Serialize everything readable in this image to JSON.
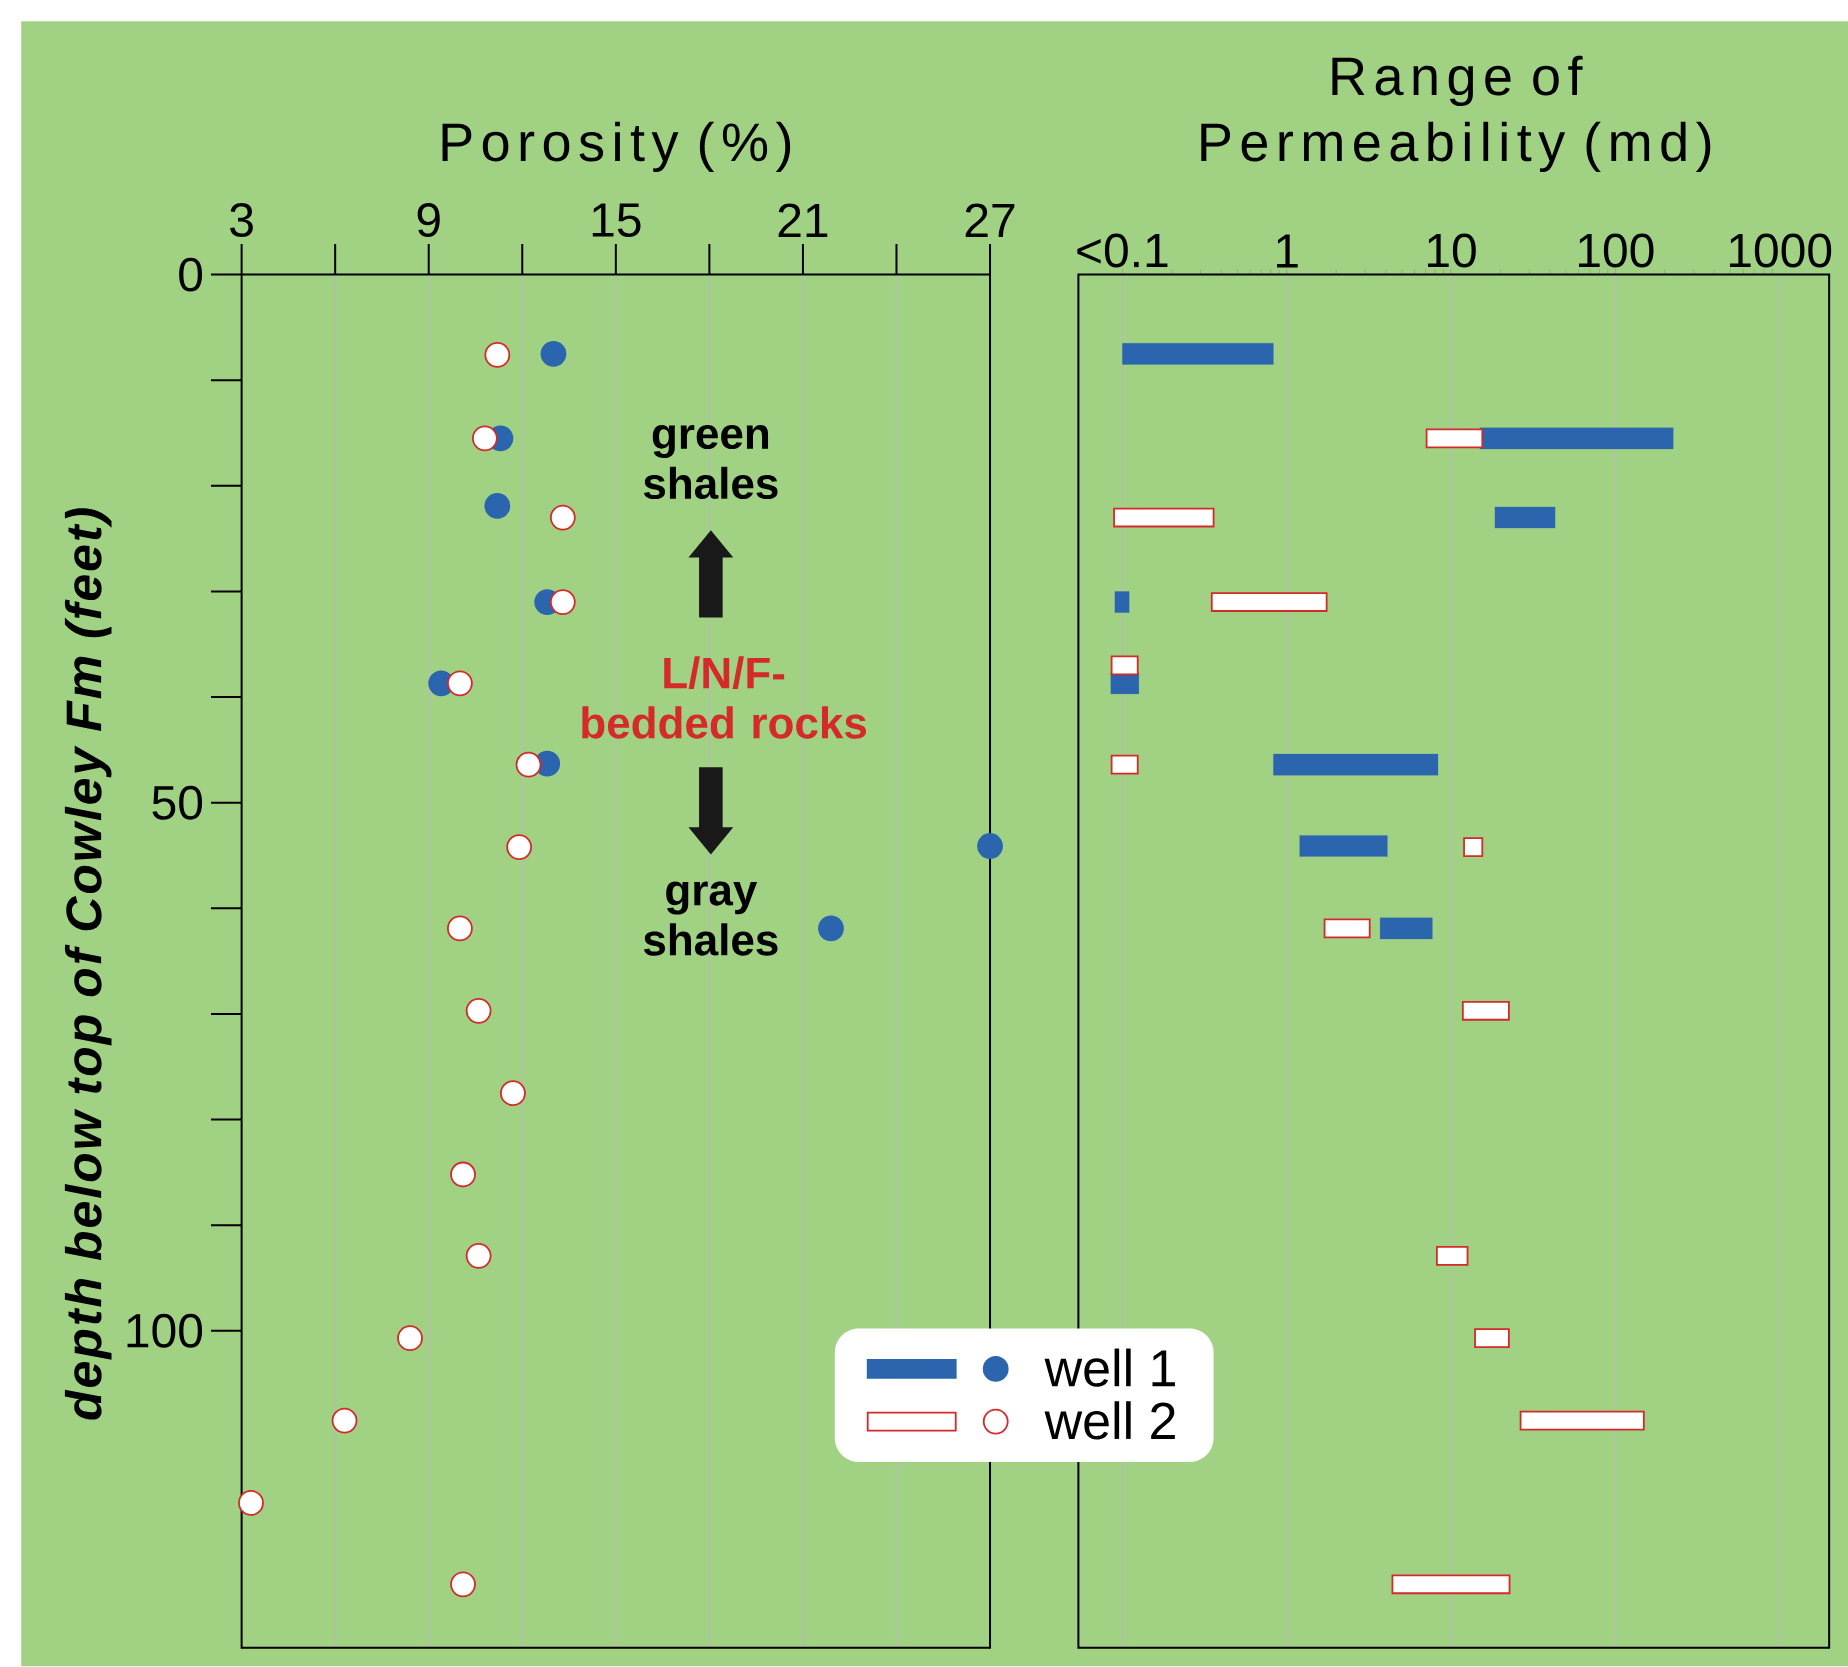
{
  "chart_data": [
    {
      "type": "scatter",
      "xlabel": "Porosity (%)",
      "ylabel": "depth below top of Cowley Fm (feet)",
      "xlim": [
        3,
        27
      ],
      "xticks": [
        3,
        {
          "value": 6,
          "label": null
        },
        9,
        {
          "value": 12,
          "label": null
        },
        15,
        {
          "value": 18,
          "label": null
        },
        21,
        {
          "value": 24,
          "label": null
        },
        27
      ],
      "ylim": [
        130,
        0
      ],
      "yticks": [
        0,
        50,
        100
      ],
      "grid": "x",
      "marker": "circle",
      "annotations": [
        "green shales",
        "L/N/F-bedded rocks",
        "gray shales"
      ],
      "series": [
        {
          "color": "#2b65ae",
          "x": [
            13,
            11.3,
            11.2,
            12.8,
            9.4,
            12.8,
            27,
            21.9
          ],
          "values": [
            7.5,
            15.5,
            21.9,
            31,
            38.7,
            46.3,
            54.1,
            61.9
          ]
        },
        {
          "color": "#d42a2a",
          "x": [
            11.2,
            10.8,
            13.3,
            13.3,
            10,
            12.2,
            11.9,
            10,
            10.6,
            11.7,
            10.1,
            10.6,
            8.4,
            6.3,
            3.3,
            10.1
          ],
          "values": [
            7.6,
            15.5,
            23,
            31,
            38.7,
            46.4,
            54.2,
            61.9,
            69.7,
            77.5,
            85.2,
            92.9,
            100.7,
            108.5,
            116.3,
            124
          ]
        }
      ]
    },
    {
      "type": "bar",
      "orientation": "horizontal",
      "xlabel": "Range of Permeability (md)",
      "log": "x",
      "xlim": [
        0.054,
        2000
      ],
      "xticks": [
        {
          "value": 0.1,
          "label": "<0.1"
        },
        1,
        10,
        100,
        1000
      ],
      "ylim": [
        130,
        0
      ],
      "tick_labels": "x",
      "grid": "x",
      "legend": "bottom left",
      "series": [
        {
          "name": "well 1",
          "color": "#2b65ae",
          "x": [
            7.5,
            15.5,
            23,
            31,
            38.7,
            46.4,
            54.1,
            61.9
          ],
          "base": [
            0.1,
            15,
            18.5,
            0.09,
            0.085,
            0.83,
            1.2,
            3.7
          ],
          "values": [
            0.73,
            210,
            24.5,
            0.02,
            0.041,
            7.5,
            2.9,
            4
          ]
        },
        {
          "name": "well 2",
          "color": "#d42a2a",
          "x": [
            15.5,
            23,
            31,
            37,
            46.4,
            54.2,
            61.9,
            69.7,
            92.9,
            100.7,
            108.5,
            124
          ],
          "base": [
            7.1,
            0.089,
            0.35,
            0.086,
            0.086,
            12,
            1.7,
            11.8,
            8.2,
            14,
            26.5,
            4.4
          ],
          "values": [
            8.4,
            0.27,
            1.4,
            0.038,
            0.038,
            3.5,
            1.5,
            10.7,
            4.4,
            8.5,
            122.5,
            18.3
          ]
        }
      ]
    }
  ]
}
